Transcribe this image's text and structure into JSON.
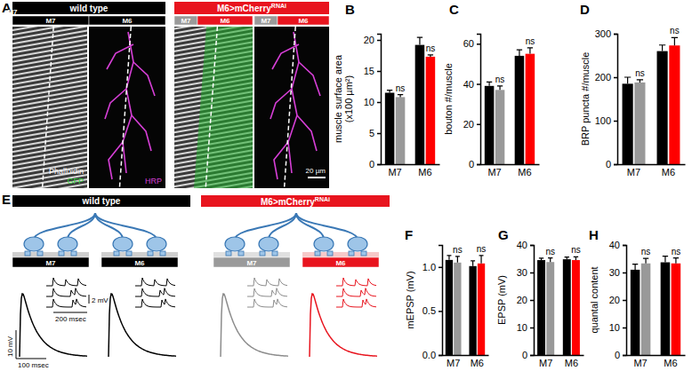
{
  "figure": {
    "panel_labels": [
      "A",
      "B",
      "C",
      "D",
      "E",
      "F",
      "G",
      "H"
    ],
    "wild_type": "wild type",
    "genotype": "M6>mCherry",
    "genotype_sup": "RNAi",
    "muscles": [
      "M7",
      "M6"
    ],
    "stains": [
      "Phalloidin",
      "GFP",
      "HRP"
    ],
    "scale_bar": "20 µm",
    "trace_scales": [
      "2 mV",
      "200 msec",
      "10 mV",
      "100 msec"
    ]
  },
  "chart_data": [
    {
      "type": "bar",
      "ylabel": [
        "muscle surface area",
        "(x100 µm²)"
      ],
      "categories": [
        "M7",
        "M6"
      ],
      "ylim": [
        0,
        21
      ],
      "yticks": [
        0,
        5,
        10,
        15,
        20
      ],
      "series": [
        {
          "colors": [
            "#000000",
            "#000000"
          ],
          "values": [
            11.5,
            19.2
          ],
          "errors": [
            0.4,
            1.2
          ]
        },
        {
          "colors": [
            "#999999",
            "#ff0000"
          ],
          "values": [
            10.8,
            17.3
          ],
          "errors": [
            0.4,
            0.3
          ]
        }
      ],
      "annotations": [
        "ns",
        "ns"
      ]
    },
    {
      "type": "bar",
      "ylabel": [
        "bouton #/muscle"
      ],
      "categories": [
        "M7",
        "M6"
      ],
      "ylim": [
        0,
        65
      ],
      "yticks": [
        0,
        20,
        40,
        60
      ],
      "series": [
        {
          "colors": [
            "#000000",
            "#000000"
          ],
          "values": [
            39,
            54
          ],
          "errors": [
            2,
            3
          ]
        },
        {
          "colors": [
            "#999999",
            "#ff0000"
          ],
          "values": [
            37,
            55
          ],
          "errors": [
            2,
            3
          ]
        }
      ],
      "annotations": [
        "ns",
        "ns"
      ]
    },
    {
      "type": "bar",
      "ylabel": [
        "BRP puncta #/muscle"
      ],
      "categories": [
        "M7",
        "M6"
      ],
      "ylim": [
        0,
        300
      ],
      "yticks": [
        0,
        100,
        200,
        300
      ],
      "series": [
        {
          "colors": [
            "#000000",
            "#000000"
          ],
          "values": [
            185,
            260
          ],
          "errors": [
            15,
            14
          ]
        },
        {
          "colors": [
            "#999999",
            "#ff0000"
          ],
          "values": [
            188,
            273
          ],
          "errors": [
            6,
            18
          ]
        }
      ],
      "annotations": [
        "ns",
        "ns"
      ]
    },
    {
      "type": "bar",
      "ylabel": [
        "mEPSP (mV)"
      ],
      "categories": [
        "M7",
        "M6"
      ],
      "ylim": [
        0,
        1.25
      ],
      "yticks": [
        {
          "value": 0,
          "label": "0.0"
        },
        {
          "value": 0.5,
          "label": "0.5"
        },
        {
          "value": 1,
          "label": "1.0"
        }
      ],
      "series": [
        {
          "colors": [
            "#000000",
            "#000000"
          ],
          "values": [
            1.08,
            1.01
          ],
          "errors": [
            0.05,
            0.06
          ]
        },
        {
          "colors": [
            "#999999",
            "#ff0000"
          ],
          "values": [
            1.05,
            1.04
          ],
          "errors": [
            0.07,
            0.09
          ]
        }
      ],
      "annotations": [
        "ns",
        "ns"
      ]
    },
    {
      "type": "bar",
      "ylabel": [
        "EPSP (mV)"
      ],
      "categories": [
        "M7",
        "M6"
      ],
      "ylim": [
        0,
        40
      ],
      "yticks": [
        0,
        10,
        20,
        30,
        40
      ],
      "series": [
        {
          "colors": [
            "#000000",
            "#000000"
          ],
          "values": [
            34.5,
            34.8
          ],
          "errors": [
            0.7,
            0.8
          ]
        },
        {
          "colors": [
            "#999999",
            "#ff0000"
          ],
          "values": [
            33.8,
            34.5
          ],
          "errors": [
            1.5,
            1.2
          ]
        }
      ],
      "annotations": [
        "ns",
        "ns"
      ]
    },
    {
      "type": "bar",
      "ylabel": [
        "quantal content"
      ],
      "categories": [
        "M7",
        "M6"
      ],
      "ylim": [
        0,
        40
      ],
      "yticks": [
        0,
        10,
        20,
        30,
        40
      ],
      "series": [
        {
          "colors": [
            "#000000",
            "#000000"
          ],
          "values": [
            31,
            33.7
          ],
          "errors": [
            2,
            2.2
          ]
        },
        {
          "colors": [
            "#999999",
            "#ff0000"
          ],
          "values": [
            33.3,
            33.3
          ],
          "errors": [
            1.8,
            2
          ]
        }
      ],
      "annotations": [
        "ns",
        "ns"
      ]
    }
  ]
}
